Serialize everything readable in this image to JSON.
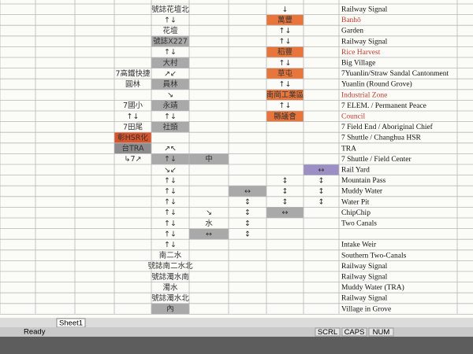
{
  "sheet": {
    "rows": [
      [
        null,
        null,
        null,
        null,
        "號誌花壇北",
        null,
        null,
        "↓",
        null,
        "Railway Signal"
      ],
      [
        null,
        null,
        null,
        null,
        "↑↓",
        null,
        null,
        {
          "text": "萬豐",
          "fill": "#e8763c"
        },
        null,
        {
          "text": "Banhō",
          "color": "#c0392b"
        }
      ],
      [
        null,
        null,
        null,
        null,
        "花壇",
        null,
        null,
        "↑↓",
        null,
        "Garden"
      ],
      [
        null,
        null,
        null,
        null,
        {
          "text": "號誌X227",
          "fill": "#a9a9a9"
        },
        null,
        null,
        "↑↓",
        null,
        "Railway Signal"
      ],
      [
        null,
        null,
        null,
        null,
        "↑↓",
        null,
        null,
        {
          "text": "稻豐",
          "fill": "#e8763c"
        },
        null,
        {
          "text": "Rice Harvest",
          "color": "#c0392b"
        }
      ],
      [
        null,
        null,
        null,
        null,
        {
          "text": "大村",
          "fill": "#a9a9a9"
        },
        null,
        null,
        "↑↓",
        null,
        "Big Village"
      ],
      [
        null,
        null,
        null,
        "7高鐵快捷",
        "↗↙",
        null,
        null,
        {
          "text": "草屯",
          "fill": "#e8763c"
        },
        null,
        "7Yuanlin/Straw Sandal Cantonment"
      ],
      [
        null,
        null,
        null,
        "圓林",
        {
          "text": "員林",
          "fill": "#a9a9a9"
        },
        null,
        null,
        "↑↓",
        null,
        "Yuanlin (Round Grove)"
      ],
      [
        null,
        null,
        null,
        null,
        "↘",
        null,
        null,
        {
          "text": "南崗工業區",
          "fill": "#e8763c"
        },
        null,
        {
          "text": "Industrial Zone",
          "color": "#c0392b"
        }
      ],
      [
        null,
        null,
        null,
        "7國小",
        {
          "text": "永靖",
          "fill": "#a9a9a9"
        },
        null,
        null,
        "↑↓",
        null,
        "7 ELEM. / Permanent Peace"
      ],
      [
        null,
        null,
        null,
        "↑↓",
        "↑↓",
        null,
        null,
        {
          "text": "縣議會",
          "fill": "#e8763c"
        },
        null,
        {
          "text": "Council",
          "color": "#c0392b"
        }
      ],
      [
        null,
        null,
        null,
        "7田尾",
        {
          "text": "社頭",
          "fill": "#a9a9a9"
        },
        null,
        null,
        null,
        null,
        "7 Field End / Aboriginal Chief"
      ],
      [
        null,
        null,
        null,
        {
          "text": "彰HSR化",
          "fill": "#d9542c"
        },
        null,
        null,
        null,
        null,
        null,
        "7 Shuttle / Changhua HSR"
      ],
      [
        null,
        null,
        null,
        {
          "text": "台TRA",
          "fill": "#8c8c8c"
        },
        "↗↖",
        null,
        null,
        null,
        null,
        "TRA"
      ],
      [
        null,
        null,
        null,
        "↳7↗",
        {
          "text": "↑↓",
          "fill": "#a9a9a9"
        },
        {
          "text": "中",
          "fill": "#a9a9a9"
        },
        null,
        null,
        null,
        "7 Shuttle / Field Center"
      ],
      [
        null,
        null,
        null,
        null,
        "↘↙",
        null,
        null,
        null,
        {
          "text": "↔",
          "fill": "#9b8fc4"
        },
        "Rail Yard"
      ],
      [
        null,
        null,
        null,
        null,
        "↑↓",
        null,
        null,
        "↕",
        "↕",
        "Mountain Pass"
      ],
      [
        null,
        null,
        null,
        null,
        "↑↓",
        null,
        {
          "text": "↔",
          "fill": "#a9a9a9"
        },
        "↕",
        "↕",
        "Muddy Water"
      ],
      [
        null,
        null,
        null,
        null,
        "↑↓",
        null,
        "↕",
        "↕",
        "↕",
        "Water Pit"
      ],
      [
        null,
        null,
        null,
        null,
        "↑↓",
        "↘",
        "↕",
        {
          "text": "↔",
          "fill": "#a9a9a9"
        },
        null,
        "ChipChip"
      ],
      [
        null,
        null,
        null,
        null,
        "↑↓",
        "水",
        "↕",
        null,
        null,
        "Two Canals"
      ],
      [
        null,
        null,
        null,
        null,
        "↑↓",
        {
          "text": "↔",
          "fill": "#a9a9a9"
        },
        "↕",
        null,
        null,
        null
      ],
      [
        null,
        null,
        null,
        null,
        "↑↓",
        null,
        null,
        null,
        null,
        "Intake Weir"
      ],
      [
        null,
        null,
        null,
        null,
        "南二水",
        null,
        null,
        null,
        null,
        "Southern Two-Canals"
      ],
      [
        null,
        null,
        null,
        null,
        "號誌南二水北",
        null,
        null,
        null,
        null,
        "Railway Signal"
      ],
      [
        null,
        null,
        null,
        null,
        "號誌濁水南",
        null,
        null,
        null,
        null,
        "Railway Signal"
      ],
      [
        null,
        null,
        null,
        null,
        "濁水",
        null,
        null,
        null,
        null,
        "Muddy Water (TRA)"
      ],
      [
        null,
        null,
        null,
        null,
        "號誌濁水北",
        null,
        null,
        null,
        null,
        "Railway Signal"
      ],
      [
        null,
        null,
        null,
        null,
        {
          "text": "內",
          "fill": "#a9a9a9"
        },
        null,
        null,
        null,
        null,
        "Village in Grove"
      ]
    ],
    "tab": "Sheet1",
    "status": "Ready",
    "indicators": [
      "SCRL",
      "CAPS",
      "NUM"
    ]
  }
}
